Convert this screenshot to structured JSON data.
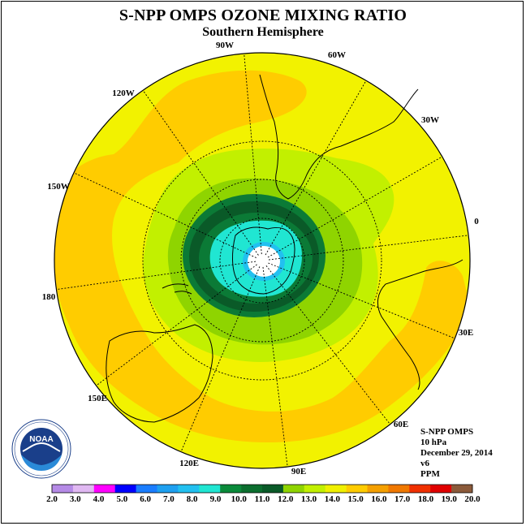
{
  "title": "S-NPP OMPS OZONE MIXING RATIO",
  "subtitle": "Southern Hemisphere",
  "longitude_labels": [
    "0",
    "30W",
    "60W",
    "90W",
    "120W",
    "150W",
    "180",
    "150E",
    "120E",
    "90E",
    "60E",
    "30E"
  ],
  "info": {
    "instrument": "S-NPP OMPS",
    "level": "10 hPa",
    "date": "December 29, 2014",
    "version": "v6",
    "units": "PPM"
  },
  "logo": {
    "text": "NOAA",
    "icon": "noaa-logo"
  },
  "colorbar": {
    "ticks": [
      "2.0",
      "3.0",
      "4.0",
      "5.0",
      "6.0",
      "7.0",
      "8.0",
      "9.0",
      "10.0",
      "11.0",
      "12.0",
      "13.0",
      "14.0",
      "15.0",
      "16.0",
      "17.0",
      "18.0",
      "19.0",
      "20.0"
    ],
    "colors": [
      "#b58ae6",
      "#e0b8f2",
      "#ff00ff",
      "#0000ff",
      "#1a7dff",
      "#1ea0f0",
      "#22c0f0",
      "#20e6d2",
      "#0a8a3a",
      "#0b6e2e",
      "#0a5a28",
      "#8fd400",
      "#c2f000",
      "#f0f000",
      "#ffcc00",
      "#f5a000",
      "#f07800",
      "#f03000",
      "#e00000",
      "#8b5a3a"
    ]
  },
  "map_colors": {
    "yellow": "#f2f200",
    "orange": "#ffcc00",
    "lightgreen": "#c2f000",
    "green": "#8fd400",
    "darkgreen1": "#0b7a36",
    "darkgreen2": "#0a5a28",
    "cyan": "#20e6d2",
    "lightblue": "#22c0f0",
    "white": "#ffffff"
  }
}
